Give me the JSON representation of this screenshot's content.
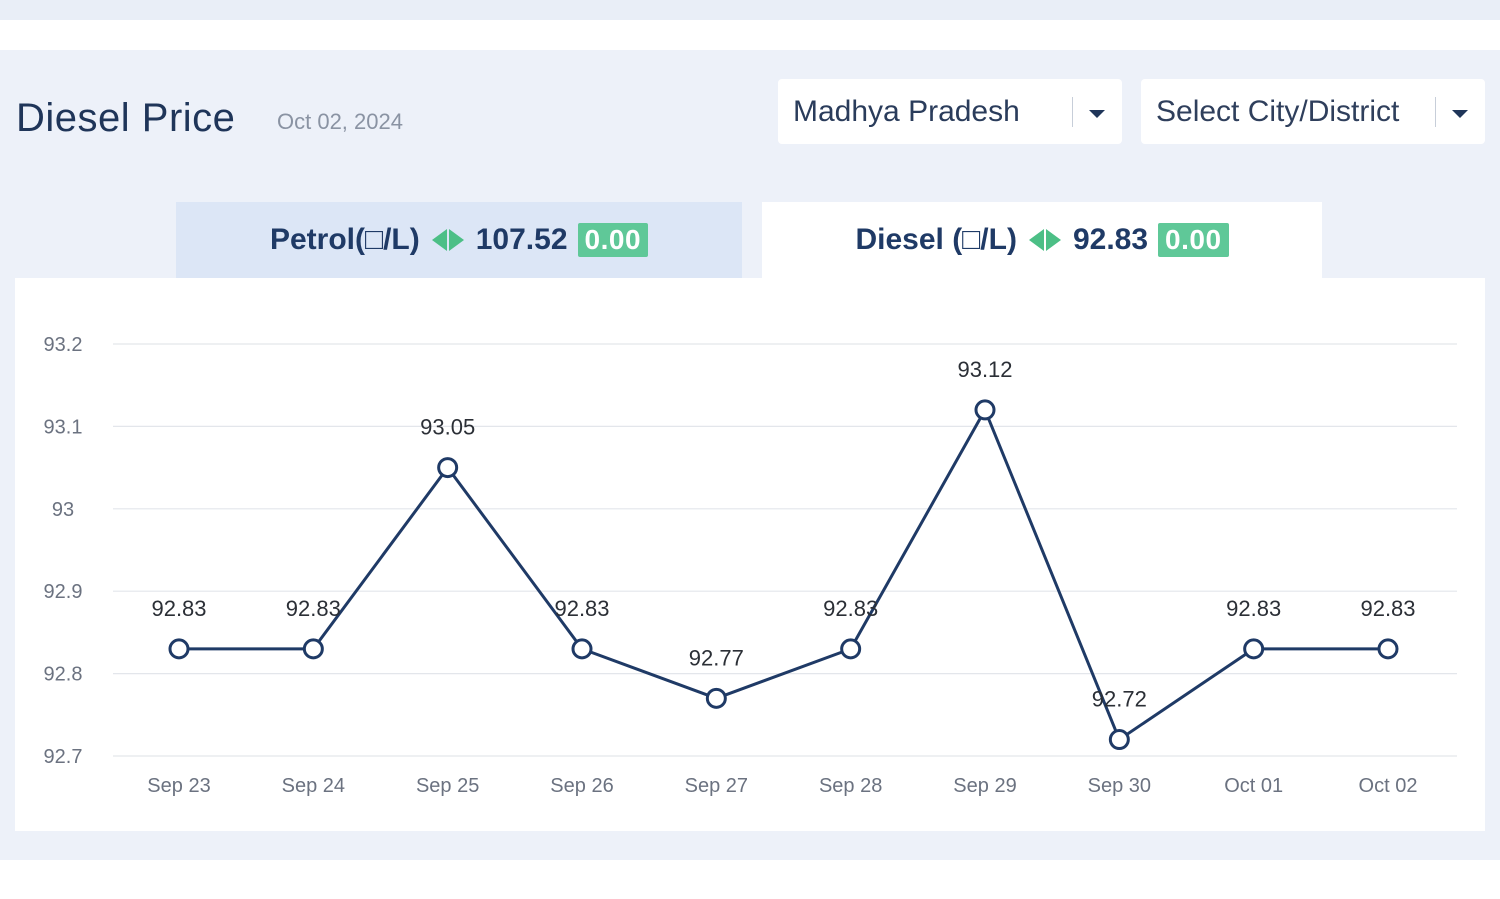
{
  "header": {
    "title": "Diesel Price",
    "date": "Oct 02, 2024"
  },
  "filters": {
    "state_value": "Madhya Pradesh",
    "city_placeholder": "Select City/District"
  },
  "tabs": [
    {
      "fuel": "Petrol(□/L)",
      "price": "107.52",
      "change": "0.00",
      "active": false
    },
    {
      "fuel": "Diesel (□/L)",
      "price": "92.83",
      "change": "0.00",
      "active": true
    }
  ],
  "colors": {
    "line": "#1f3a66",
    "accent_green": "#4cbf86",
    "grid": "#e3e6eb"
  },
  "chart_data": {
    "type": "line",
    "title": "",
    "xlabel": "",
    "ylabel": "",
    "categories": [
      "Sep 23",
      "Sep 24",
      "Sep 25",
      "Sep 26",
      "Sep 27",
      "Sep 28",
      "Sep 29",
      "Sep 30",
      "Oct 01",
      "Oct 02"
    ],
    "series": [
      {
        "name": "Diesel",
        "values": [
          92.83,
          92.83,
          93.05,
          92.83,
          92.77,
          92.83,
          93.12,
          92.72,
          92.83,
          92.83
        ]
      }
    ],
    "data_labels": [
      "92.83",
      "92.83",
      "93.05",
      "92.83",
      "92.77",
      "92.83",
      "93.12",
      "92.72",
      "92.83",
      "92.83"
    ],
    "y_ticks": [
      92.7,
      92.8,
      92.9,
      93,
      93.1,
      93.2
    ],
    "y_tick_labels": [
      "92.7",
      "92.8",
      "92.9",
      "93",
      "93.1",
      "93.2"
    ],
    "ylim": [
      92.7,
      93.2
    ],
    "grid": true,
    "legend": "none"
  }
}
